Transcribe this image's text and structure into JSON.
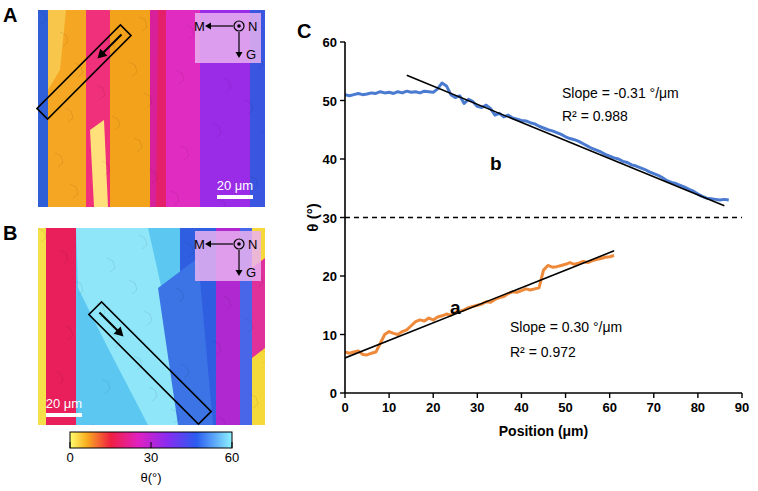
{
  "maps": [
    {
      "letter": "A",
      "scale_bar": "20 μm",
      "key": [
        "M",
        "N",
        "G"
      ]
    },
    {
      "letter": "B",
      "scale_bar": "20 μm",
      "key": [
        "M",
        "N",
        "G"
      ]
    }
  ],
  "colorbar": {
    "label": "θ(°)",
    "range": [
      0,
      60
    ],
    "ticks": [
      0,
      30,
      60
    ]
  },
  "panel_letter": "C",
  "chart_data": {
    "type": "line",
    "x_label": "Position (μm)",
    "y_label": "θ (°)",
    "xlim": [
      0,
      90
    ],
    "ylim": [
      0,
      60
    ],
    "xticks": [
      0,
      10,
      20,
      30,
      40,
      50,
      60,
      70,
      80,
      90
    ],
    "yticks": [
      0,
      10,
      20,
      30,
      40,
      50,
      60
    ],
    "annotations": [
      "Slope = -0.31 °/μm",
      "R² = 0.988",
      "Slope = 0.30 °/μm",
      "R² = 0.972"
    ],
    "series": [
      {
        "name": "a",
        "color": "#ef8a3a",
        "x": [
          0,
          1,
          2,
          3,
          4,
          5,
          6,
          7,
          8,
          9,
          10,
          11,
          12,
          13,
          14,
          15,
          16,
          17,
          18,
          19,
          20,
          21,
          22,
          23,
          24,
          25,
          26,
          27,
          28,
          29,
          30,
          31,
          32,
          33,
          34,
          35,
          36,
          37,
          38,
          39,
          40,
          41,
          42,
          43,
          44,
          45,
          46,
          47,
          48,
          49,
          50,
          51,
          52,
          53,
          54,
          55,
          56,
          57,
          58,
          59,
          60,
          61
        ],
        "values": [
          7,
          6.8,
          7,
          7.2,
          6.6,
          6.5,
          6.8,
          7,
          8.5,
          10,
          10.5,
          10.2,
          10,
          10.5,
          10.8,
          11.5,
          12.2,
          12.5,
          12.3,
          12.8,
          12.5,
          13,
          13.2,
          13.5,
          13.3,
          13.8,
          14,
          14.2,
          14.6,
          14.8,
          15,
          15.2,
          15.6,
          15.5,
          16,
          16.3,
          16.5,
          17,
          17.3,
          17.2,
          17.5,
          17.8,
          17.6,
          17.8,
          18,
          21,
          21.8,
          21.5,
          21.6,
          21.8,
          22,
          22.3,
          22,
          22.2,
          22.5,
          22.3,
          22.6,
          22.8,
          23,
          23.2,
          23.3,
          23.5
        ]
      },
      {
        "name": "b",
        "color": "#4a7bd0",
        "x": [
          0,
          1,
          2,
          3,
          4,
          5,
          6,
          7,
          8,
          9,
          10,
          11,
          12,
          13,
          14,
          15,
          16,
          17,
          18,
          19,
          20,
          21,
          22,
          23,
          24,
          25,
          26,
          27,
          28,
          29,
          30,
          31,
          32,
          33,
          34,
          35,
          36,
          37,
          38,
          39,
          40,
          41,
          42,
          43,
          44,
          45,
          46,
          47,
          48,
          49,
          50,
          51,
          52,
          53,
          54,
          55,
          56,
          57,
          58,
          59,
          60,
          61,
          62,
          63,
          64,
          65,
          66,
          67,
          68,
          69,
          70,
          71,
          72,
          73,
          74,
          75,
          76,
          77,
          78,
          79,
          80,
          81,
          82,
          83,
          84,
          85,
          86,
          87
        ],
        "values": [
          51,
          50.8,
          51,
          51.2,
          51,
          51.1,
          51.3,
          51.2,
          51.5,
          51.3,
          51.4,
          51.2,
          51.5,
          51.3,
          51.6,
          51.4,
          51.5,
          51.3,
          51.6,
          51.5,
          51.4,
          52,
          53,
          52.5,
          51,
          50.5,
          50.8,
          49.5,
          50.2,
          49.8,
          49,
          48.8,
          49.2,
          48.6,
          47.5,
          47.8,
          47.2,
          47.5,
          47,
          46.8,
          46.6,
          46.5,
          46.2,
          46,
          45.6,
          45.3,
          45,
          44.8,
          44.5,
          44.2,
          43.8,
          43.5,
          43.3,
          43,
          42.6,
          42.2,
          41.8,
          41.5,
          41.2,
          40.8,
          40.5,
          40.2,
          40,
          39.6,
          39.4,
          39,
          38.8,
          38.5,
          38.2,
          37.8,
          37.5,
          37.2,
          36.8,
          36.3,
          36,
          35.8,
          35.5,
          35.2,
          34.8,
          34.5,
          34,
          33.6,
          33.3,
          33.2,
          33.1,
          33,
          33.1,
          33
        ]
      },
      {
        "color": "#000000",
        "line_style": "solid",
        "x": [
          0,
          61
        ],
        "values": [
          6,
          24.3
        ]
      },
      {
        "color": "#000000",
        "line_style": "solid",
        "x": [
          14,
          86
        ],
        "values": [
          54.3,
          32
        ]
      },
      {
        "color": "#000000",
        "line_style": "dashed",
        "x": [
          0,
          90
        ],
        "values": [
          30,
          30
        ]
      }
    ]
  }
}
